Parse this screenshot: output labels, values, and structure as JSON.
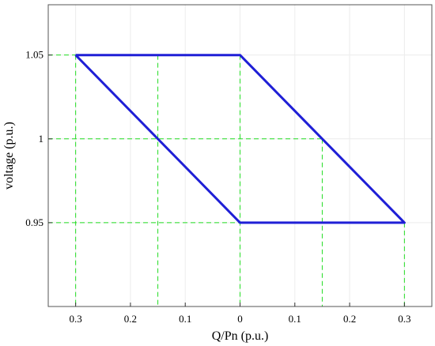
{
  "chart_data": {
    "type": "line",
    "xlabel": "Q/Pn (p.u.)",
    "ylabel": "voltage (p.u.)",
    "xlim": [
      -0.35,
      0.35
    ],
    "ylim": [
      0.9,
      1.08
    ],
    "x_ticks": [
      {
        "value": -0.3,
        "label": "0.3"
      },
      {
        "value": -0.2,
        "label": "0.2"
      },
      {
        "value": -0.1,
        "label": "0.1"
      },
      {
        "value": 0.0,
        "label": "0"
      },
      {
        "value": 0.1,
        "label": "0.1"
      },
      {
        "value": 0.2,
        "label": "0.2"
      },
      {
        "value": 0.3,
        "label": "0.3"
      }
    ],
    "y_ticks": [
      {
        "value": 0.95,
        "label": "0.95"
      },
      {
        "value": 1.0,
        "label": "1"
      },
      {
        "value": 1.05,
        "label": "1.05"
      }
    ],
    "grid": true,
    "series": [
      {
        "color": "#1f1fd6",
        "x": [
          -0.3,
          0.0,
          0.3,
          0.0,
          -0.3
        ],
        "y": [
          1.05,
          1.05,
          0.95,
          0.95,
          1.05
        ]
      }
    ],
    "reference_lines": {
      "color": "#22dd22",
      "vertical": [
        -0.3,
        -0.15,
        0.0,
        0.15,
        0.3
      ],
      "horizontal": [
        0.95,
        1.0,
        1.05
      ]
    }
  }
}
